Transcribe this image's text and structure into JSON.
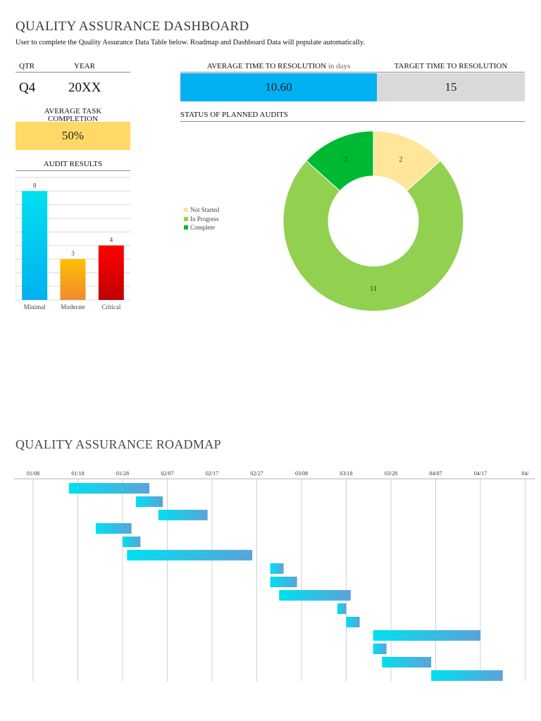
{
  "header": {
    "title": "QUALITY ASSURANCE DASHBOARD",
    "subtitle": "User to complete the Quality Assurance Data Table below.  Roadmap and Dashboard Data will populate automatically."
  },
  "period": {
    "qtr_label": "QTR",
    "year_label": "YEAR",
    "qtr": "Q4",
    "year": "20XX"
  },
  "avg_task": {
    "label_line1": "AVERAGE TASK",
    "label_line2": "COMPLETION",
    "value": "50%",
    "color": "#ffd966"
  },
  "resolution": {
    "avg_label": "AVERAGE TIME TO RESOLUTION",
    "avg_unit": "in days",
    "avg_value": "10.60",
    "avg_color": "#00b0f0",
    "target_label": "TARGET TIME TO RESOLUTION",
    "target_value": "15",
    "target_color": "#d9d9d9"
  },
  "audit_results": {
    "label": "AUDIT RESULTS"
  },
  "planned_audits": {
    "label": "STATUS OF PLANNED AUDITS"
  },
  "roadmap": {
    "title": "QUALITY ASSURANCE ROADMAP"
  },
  "chart_data": [
    {
      "type": "bar",
      "categories": [
        "Minimal",
        "Moderate",
        "Critical"
      ],
      "values": [
        8,
        3,
        4
      ],
      "ylim": [
        0,
        9
      ],
      "gridlines": true,
      "colors": [
        [
          "#00e0f0",
          "#00b0f0"
        ],
        [
          "#ffc000",
          "#f08a30"
        ],
        [
          "#ff0000",
          "#c00000"
        ]
      ]
    },
    {
      "type": "pie",
      "donut": true,
      "categories": [
        "Not Started",
        "In Progress",
        "Complete"
      ],
      "values": [
        2,
        11,
        2
      ],
      "colors": [
        "#ffe699",
        "#92d050",
        "#00b933"
      ],
      "legend": "left"
    },
    {
      "type": "gantt",
      "ticks": [
        "01/08",
        "01/18",
        "01/28",
        "02/07",
        "02/17",
        "02/27",
        "03/08",
        "03/18",
        "03/28",
        "04/07",
        "04/17",
        "04/"
      ],
      "tick_step_days": 10,
      "bar_colors": [
        "#00e0f0",
        "#5ba3d9"
      ],
      "tasks": [
        {
          "start": "01/16",
          "end": "02/03"
        },
        {
          "start": "01/31",
          "end": "02/06"
        },
        {
          "start": "02/05",
          "end": "02/16"
        },
        {
          "start": "01/22",
          "end": "01/30"
        },
        {
          "start": "01/28",
          "end": "02/01"
        },
        {
          "start": "01/29",
          "end": "02/26"
        },
        {
          "start": "03/01",
          "end": "03/04"
        },
        {
          "start": "03/01",
          "end": "03/07"
        },
        {
          "start": "03/03",
          "end": "03/19"
        },
        {
          "start": "03/16",
          "end": "03/18"
        },
        {
          "start": "03/18",
          "end": "03/21"
        },
        {
          "start": "03/24",
          "end": "04/17"
        },
        {
          "start": "03/24",
          "end": "03/27"
        },
        {
          "start": "03/26",
          "end": "04/06"
        },
        {
          "start": "04/06",
          "end": "04/22"
        }
      ]
    }
  ]
}
